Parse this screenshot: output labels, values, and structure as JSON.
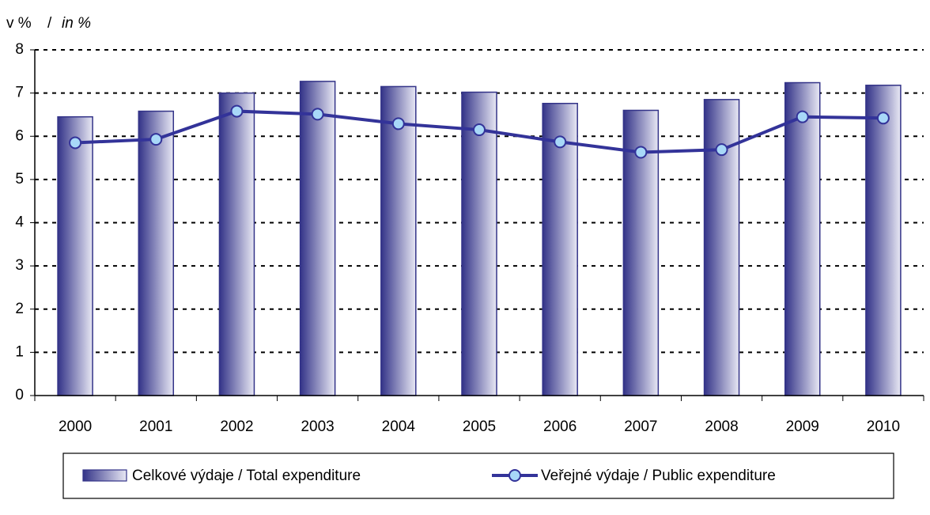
{
  "chart_data": {
    "type": "bar_line",
    "y_label": [
      "v %",
      "/",
      "in %"
    ],
    "categories": [
      "2000",
      "2001",
      "2002",
      "2003",
      "2004",
      "2005",
      "2006",
      "2007",
      "2008",
      "2009",
      "2010"
    ],
    "series": [
      {
        "name": "Celkové výdaje / Total expenditure",
        "type": "bar",
        "color": "#333388",
        "values": [
          6.45,
          6.58,
          7.0,
          7.27,
          7.15,
          7.02,
          6.76,
          6.6,
          6.85,
          7.24,
          7.18
        ]
      },
      {
        "name": "Veřejné výdaje / Public expenditure",
        "type": "line",
        "color": "#333399",
        "marker_color": "#a8d8f8",
        "values": [
          5.85,
          5.93,
          6.58,
          6.51,
          6.29,
          6.15,
          5.87,
          5.63,
          5.69,
          6.45,
          6.42
        ]
      }
    ],
    "ylim": [
      0,
      8
    ],
    "yticks": [
      0,
      1,
      2,
      3,
      4,
      5,
      6,
      7,
      8
    ],
    "grid": true,
    "legend": "bottom"
  }
}
